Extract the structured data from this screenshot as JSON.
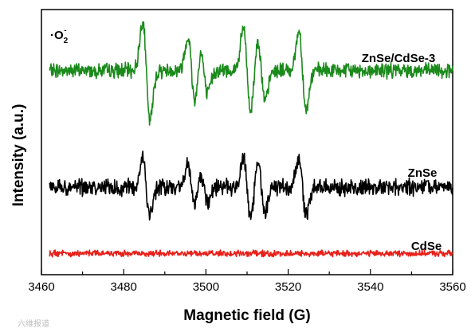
{
  "chart_data": {
    "type": "line",
    "xlabel": "Magnetic field (G)",
    "ylabel": "Intensity (a.u.)",
    "xlim": [
      3460,
      3560
    ],
    "ylim": [
      0,
      100
    ],
    "x_ticks": [
      3460,
      3480,
      3500,
      3520,
      3540,
      3560
    ],
    "annotation": {
      "main": "·O",
      "sub": "2",
      "sup": "-"
    },
    "watermark": "六维报道",
    "series": [
      {
        "name": "ZnSe/CdSe-3",
        "color": "#1a8a1a",
        "baseline": 77,
        "noise": 2.2,
        "seed": 7,
        "peaks": [
          {
            "x": 3485.5,
            "amp": 19,
            "width": 0.9
          },
          {
            "x": 3496.5,
            "amp": 13,
            "width": 0.9
          },
          {
            "x": 3499.5,
            "amp": 9,
            "width": 0.9
          },
          {
            "x": 3510.0,
            "amp": 16,
            "width": 0.9
          },
          {
            "x": 3513.5,
            "amp": 12,
            "width": 0.9
          },
          {
            "x": 3523.5,
            "amp": 15,
            "width": 0.9
          }
        ]
      },
      {
        "name": "ZnSe",
        "color": "#000000",
        "baseline": 33,
        "noise": 2.4,
        "seed": 21,
        "peaks": [
          {
            "x": 3485.5,
            "amp": 11,
            "width": 0.9
          },
          {
            "x": 3496.5,
            "amp": 8,
            "width": 0.9
          },
          {
            "x": 3499.5,
            "amp": 6,
            "width": 0.9
          },
          {
            "x": 3510.0,
            "amp": 12,
            "width": 0.9
          },
          {
            "x": 3513.5,
            "amp": 9,
            "width": 0.9
          },
          {
            "x": 3523.5,
            "amp": 11,
            "width": 0.9
          }
        ]
      },
      {
        "name": "CdSe",
        "color": "#e8201a",
        "baseline": 8,
        "noise": 0.9,
        "seed": 43,
        "peaks": []
      }
    ]
  }
}
